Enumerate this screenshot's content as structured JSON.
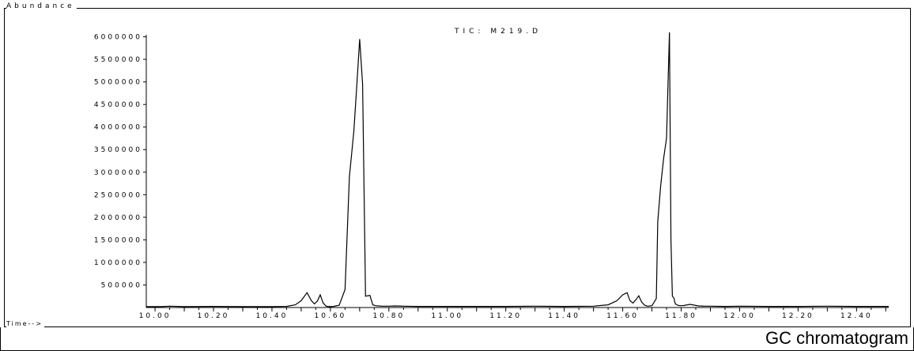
{
  "caption": "GC chromatogram",
  "chart_data": {
    "type": "line",
    "title": "TIC: M219.D",
    "ylabel": "Abundance",
    "xlabel": "Time-->",
    "xlim": [
      9.97,
      12.51
    ],
    "ylim": [
      0,
      6150000
    ],
    "y_ticks": [
      500000,
      1000000,
      1500000,
      2000000,
      2500000,
      3000000,
      3500000,
      4000000,
      4500000,
      5000000,
      5500000,
      6000000
    ],
    "y_tick_labels": [
      "500000",
      "1000000",
      "1500000",
      "2000000",
      "2500000",
      "3000000",
      "3500000",
      "4000000",
      "4500000",
      "5000000",
      "5500000",
      "6000000"
    ],
    "x_ticks": [
      10.0,
      10.2,
      10.4,
      10.6,
      10.8,
      11.0,
      11.2,
      11.4,
      11.6,
      11.8,
      12.0,
      12.2,
      12.4
    ],
    "x_tick_labels": [
      "10.00",
      "10.20",
      "10.40",
      "10.60",
      "10.80",
      "11.00",
      "11.20",
      "11.40",
      "11.60",
      "11.80",
      "12.00",
      "12.20",
      "12.40"
    ],
    "grid": false,
    "series": [
      {
        "name": "TIC: M219.D",
        "x": [
          9.97,
          10.02,
          10.05,
          10.1,
          10.2,
          10.3,
          10.4,
          10.45,
          10.48,
          10.5,
          10.52,
          10.535,
          10.545,
          10.555,
          10.565,
          10.575,
          10.585,
          10.595,
          10.61,
          10.63,
          10.65,
          10.665,
          10.68,
          10.69,
          10.7,
          10.71,
          10.72,
          10.735,
          10.745,
          10.755,
          10.765,
          10.78,
          10.8,
          10.82,
          10.85,
          10.9,
          11.0,
          11.1,
          11.2,
          11.3,
          11.4,
          11.5,
          11.55,
          11.58,
          11.6,
          11.615,
          11.625,
          11.635,
          11.645,
          11.655,
          11.665,
          11.675,
          11.685,
          11.7,
          11.715,
          11.72,
          11.73,
          11.74,
          11.75,
          11.76,
          11.765,
          11.77,
          11.775,
          11.78,
          11.79,
          11.8,
          11.81,
          11.83,
          11.86,
          11.88,
          11.9,
          11.95,
          12.0,
          12.1,
          12.2,
          12.3,
          12.4,
          12.51
        ],
        "y": [
          20000,
          20000,
          30000,
          20000,
          25000,
          20000,
          20000,
          25000,
          60000,
          150000,
          330000,
          150000,
          80000,
          140000,
          280000,
          100000,
          30000,
          20000,
          25000,
          50000,
          400000,
          2900000,
          3900000,
          4900000,
          5950000,
          4950000,
          250000,
          270000,
          60000,
          40000,
          35000,
          30000,
          30000,
          35000,
          30000,
          25000,
          25000,
          25000,
          25000,
          30000,
          25000,
          30000,
          60000,
          150000,
          280000,
          330000,
          150000,
          100000,
          170000,
          260000,
          120000,
          50000,
          30000,
          40000,
          200000,
          1900000,
          2700000,
          3300000,
          3750000,
          6100000,
          1500000,
          250000,
          210000,
          80000,
          45000,
          40000,
          45000,
          70000,
          35000,
          30000,
          30000,
          25000,
          30000,
          25000,
          25000,
          30000,
          25000,
          25000
        ]
      }
    ]
  }
}
